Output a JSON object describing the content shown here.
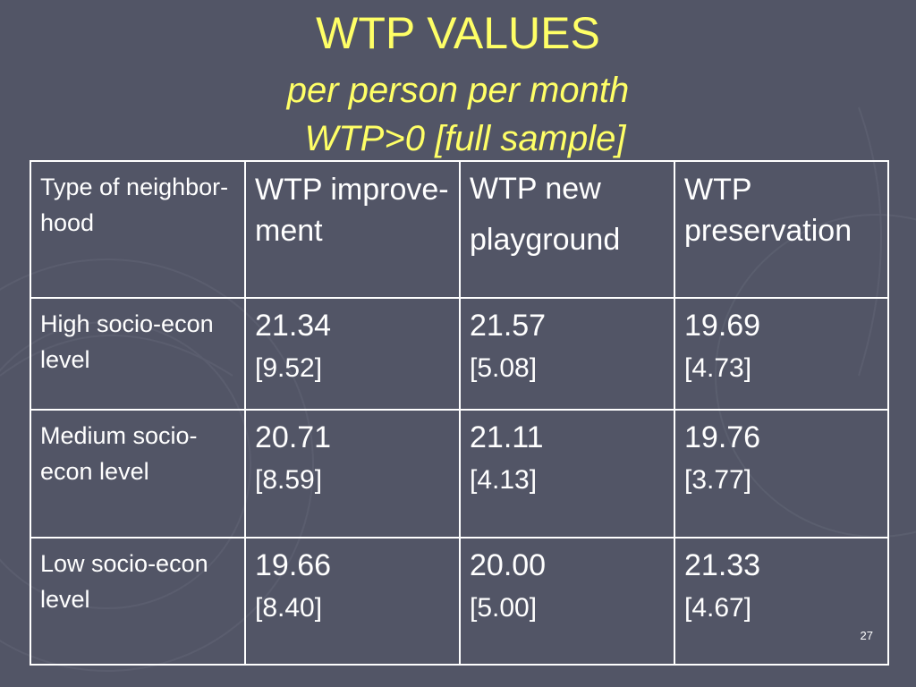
{
  "title": {
    "main": "WTP VALUES",
    "line2": "per person per month",
    "line3": "WTP>0 [full sample]"
  },
  "table": {
    "headers": [
      "Type of neighbor-hood",
      "WTP improve-ment",
      "WTP new playground",
      "WTP preservation"
    ],
    "rows": [
      {
        "label": "High socio-econ level",
        "cells": [
          {
            "value": "21.34",
            "se": "[9.52]"
          },
          {
            "value": "21.57",
            "se": "[5.08]"
          },
          {
            "value": "19.69",
            "se": "[4.73]"
          }
        ]
      },
      {
        "label": "Medium socio-econ level",
        "cells": [
          {
            "value": "20.71",
            "se": "[8.59]"
          },
          {
            "value": "21.11",
            "se": "[4.13]"
          },
          {
            "value": "19.76",
            "se": "[3.77]"
          }
        ]
      },
      {
        "label": "Low socio-econ level",
        "cells": [
          {
            "value": "19.66",
            "se": "[8.40]"
          },
          {
            "value": "20.00",
            "se": "[5.00]"
          },
          {
            "value": "21.33",
            "se": "[4.67]"
          }
        ]
      }
    ]
  },
  "slide_number": "27",
  "colors": {
    "background": "#525566",
    "title": "#ffff66",
    "text": "#ffffff",
    "border": "#ffffff"
  }
}
